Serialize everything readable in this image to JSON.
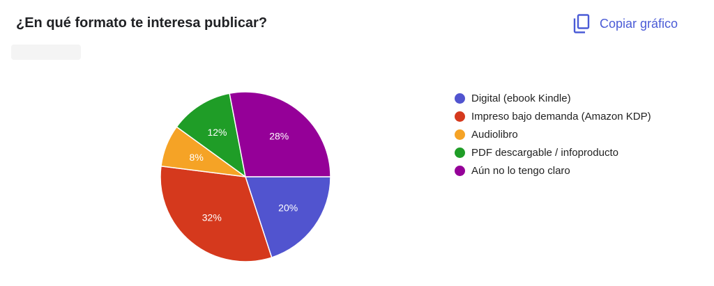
{
  "header": {
    "title": "¿En qué formato te interesa publicar?",
    "copy_label": "Copiar gráfico",
    "copy_icon": "copy-icon"
  },
  "colors": {
    "accent": "#4a5bd6"
  },
  "chart_data": {
    "type": "pie",
    "title": "¿En qué formato te interesa publicar?",
    "legend_position": "right",
    "start_angle_deg": 90,
    "direction": "clockwise",
    "series": [
      {
        "name": "Digital (ebook Kindle)",
        "value": 20,
        "label": "20%",
        "color": "#5154cf"
      },
      {
        "name": "Impreso bajo demanda (Amazon KDP)",
        "value": 32,
        "label": "32%",
        "color": "#d5391d"
      },
      {
        "name": "Audiolibro",
        "value": 8,
        "label": "8%",
        "color": "#f5a326"
      },
      {
        "name": "PDF descargable / infoproducto",
        "value": 12,
        "label": "12%",
        "color": "#1f9d27"
      },
      {
        "name": "Aún no lo tengo claro",
        "value": 28,
        "label": "28%",
        "color": "#950098"
      }
    ]
  }
}
